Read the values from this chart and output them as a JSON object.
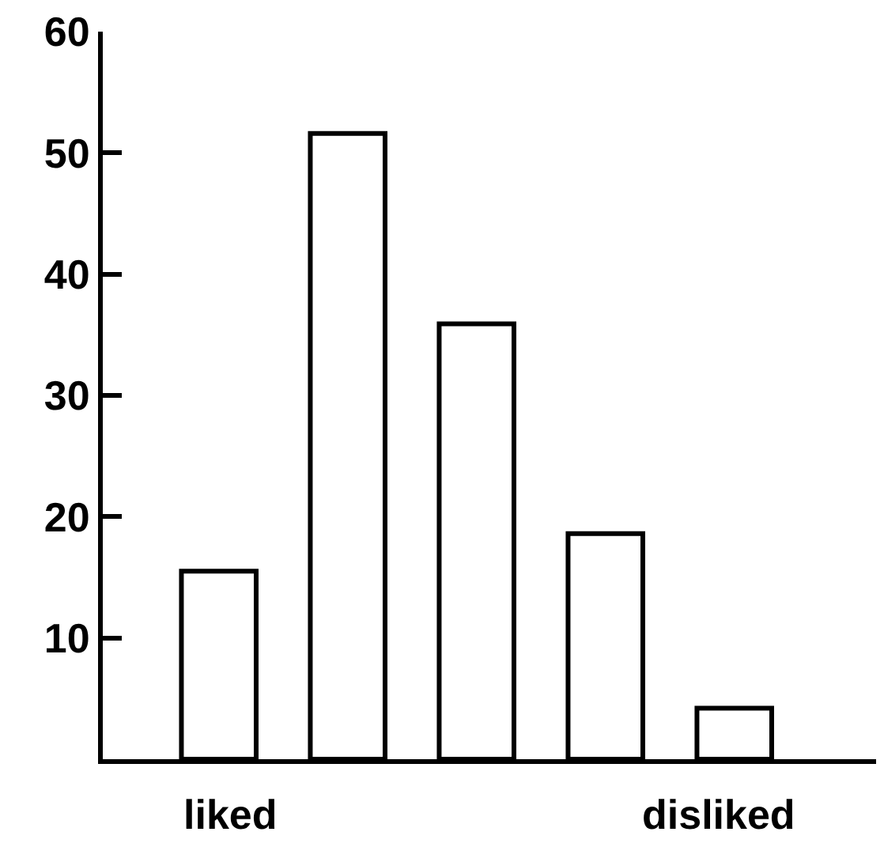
{
  "chart_data": {
    "type": "bar",
    "categories": [
      null,
      null,
      null,
      null,
      null
    ],
    "values": [
      15.5,
      51.6,
      35.9,
      18.6,
      4.2
    ],
    "color": "#ffffff",
    "ylim": [
      0,
      60
    ],
    "yticks": [
      10,
      20,
      30,
      40,
      50,
      60
    ],
    "legend": false,
    "annotations": [
      "liked",
      "disliked"
    ]
  }
}
